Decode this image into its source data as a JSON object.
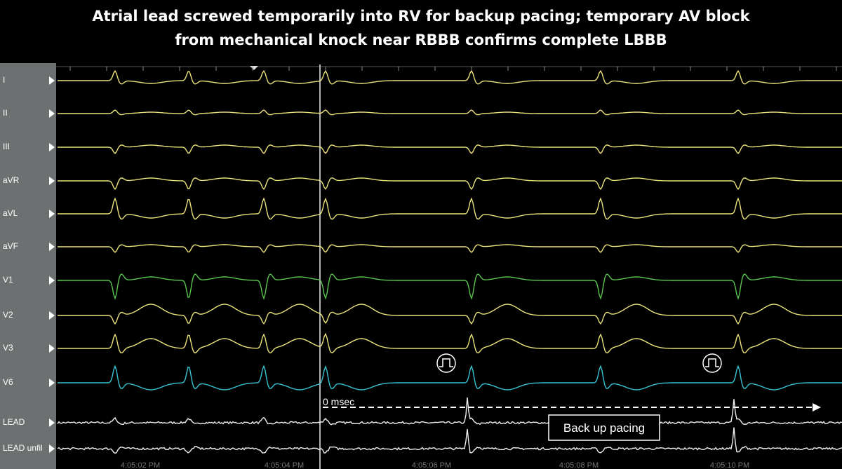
{
  "header": {
    "title": [
      "Atrial lead screwed temporarily into RV for backup pacing; temporary AV block",
      "from mechanical knock near RBBB confirms complete LBBB"
    ]
  },
  "leads": [
    "I",
    "II",
    "III",
    "aVR",
    "aVL",
    "aVF",
    "V1",
    "V2",
    "V3",
    "V6",
    "LEAD",
    "LEAD unfil"
  ],
  "annotations": {
    "interval": "0 msec",
    "callout": "Back up pacing"
  },
  "time_labels": [
    "4:05:02 PM",
    "4:05:04 PM",
    "4:05:06 PM",
    "4:05:08 PM",
    "4:05:10 PM"
  ]
}
